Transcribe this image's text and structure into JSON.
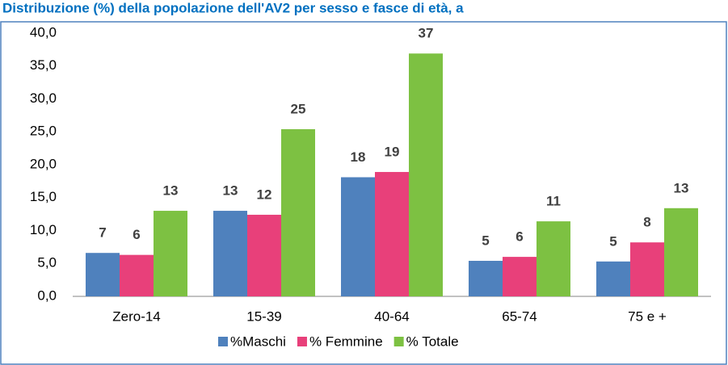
{
  "chart_data": {
    "type": "bar",
    "title": "Distribuzione (%) della popolazione dell'AV2 per sesso e fasce di età, a",
    "categories": [
      "Zero-14",
      "15-39",
      "40-64",
      "65-74",
      "75 e +"
    ],
    "series": [
      {
        "name": "%Maschi",
        "color": "#4f81bd",
        "values": [
          6.6,
          13.0,
          18.1,
          5.4,
          5.3
        ],
        "value_labels": [
          "7",
          "13",
          "18",
          "5",
          "5"
        ]
      },
      {
        "name": "% Femmine",
        "color": "#e8407a",
        "values": [
          6.3,
          12.4,
          18.9,
          6.0,
          8.2
        ],
        "value_labels": [
          "6",
          "12",
          "19",
          "6",
          "8"
        ]
      },
      {
        "name": "% Totale",
        "color": "#7dc142",
        "values": [
          13.0,
          25.4,
          36.9,
          11.4,
          13.4
        ],
        "value_labels": [
          "13",
          "25",
          "37",
          "11",
          "13"
        ]
      }
    ],
    "ylim": [
      0,
      40
    ],
    "yticks": [
      {
        "value": 0,
        "label": "0,0"
      },
      {
        "value": 5,
        "label": "5,0"
      },
      {
        "value": 10,
        "label": "10,0"
      },
      {
        "value": 15,
        "label": "15,0"
      },
      {
        "value": 20,
        "label": "20,0"
      },
      {
        "value": 25,
        "label": "25,0"
      },
      {
        "value": 30,
        "label": "30,0"
      },
      {
        "value": 35,
        "label": "35,0"
      },
      {
        "value": 40,
        "label": "40,0"
      }
    ],
    "grid": false,
    "legend": "bottom"
  }
}
